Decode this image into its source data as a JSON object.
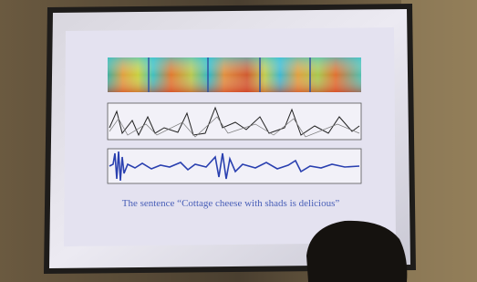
{
  "slide": {
    "caption": "The sentence “Cottage cheese with shads is delicious”"
  }
}
